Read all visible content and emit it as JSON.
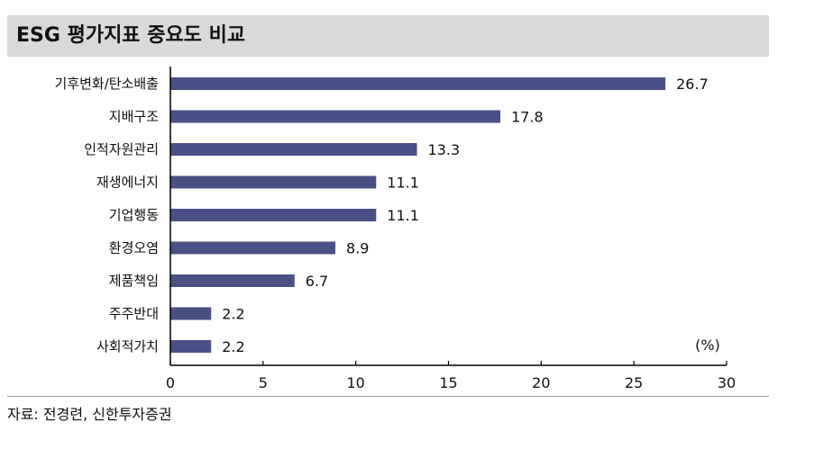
{
  "header": {
    "title": "ESG 평가지표 중요도 비교"
  },
  "footer": {
    "source": "자료: 전경련, 신한투자증권"
  },
  "colors": {
    "bar": "#4a5085",
    "title_background": "#d9d9d9"
  },
  "chart_data": {
    "type": "bar",
    "orientation": "horizontal",
    "title": "ESG 평가지표 중요도 비교",
    "categories": [
      "기후변화/탄소배출",
      "지배구조",
      "인적자원관리",
      "재생에너지",
      "기업행동",
      "환경오염",
      "제품책임",
      "주주반대",
      "사회적가치"
    ],
    "values": [
      26.7,
      17.8,
      13.3,
      11.1,
      11.1,
      8.9,
      6.7,
      2.2,
      2.2
    ],
    "value_labels": [
      "26.7",
      "17.8",
      "13.3",
      "11.1",
      "11.1",
      "8.9",
      "6.7",
      "2.2",
      "2.2"
    ],
    "unit": "(%)",
    "xlim": [
      0,
      30
    ],
    "xticks": [
      0,
      5,
      10,
      15,
      20,
      25,
      30
    ],
    "xtick_labels": [
      "0",
      "5",
      "10",
      "15",
      "20",
      "25",
      "30"
    ],
    "grid": false,
    "legend": "none"
  }
}
